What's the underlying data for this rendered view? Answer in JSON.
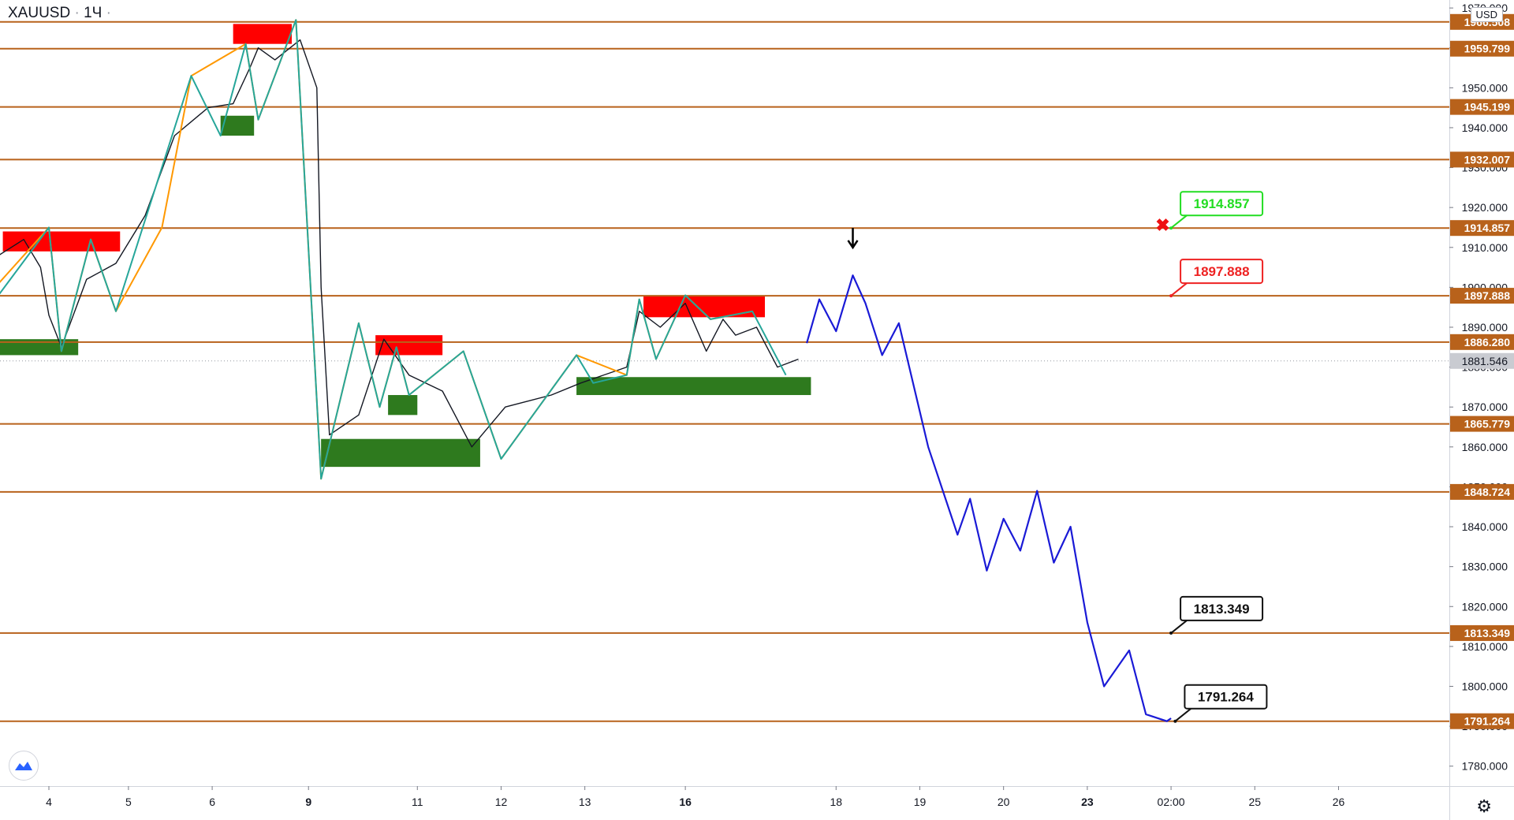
{
  "header": {
    "symbol": "XAUUSD",
    "separator": "·",
    "interval": "1Ч",
    "dot": "·"
  },
  "currency": "USD",
  "chart_data": {
    "type": "line",
    "title": "XAUUSD · 1Ч",
    "ylim": [
      1775,
      1972
    ],
    "x_ticks": [
      {
        "label": "4",
        "bold": false
      },
      {
        "label": "5",
        "bold": false
      },
      {
        "label": "6",
        "bold": false
      },
      {
        "label": "9",
        "bold": true
      },
      {
        "label": "11",
        "bold": false
      },
      {
        "label": "12",
        "bold": false
      },
      {
        "label": "13",
        "bold": false
      },
      {
        "label": "16",
        "bold": true
      },
      {
        "label": "18",
        "bold": false
      },
      {
        "label": "19",
        "bold": false
      },
      {
        "label": "20",
        "bold": false
      },
      {
        "label": "23",
        "bold": true
      },
      {
        "label": "02:00",
        "bold": false
      },
      {
        "label": "25",
        "bold": false
      },
      {
        "label": "26",
        "bold": false
      }
    ],
    "x_tick_index": [
      0.55,
      1.5,
      2.5,
      3.65,
      4.95,
      5.95,
      6.95,
      8.15,
      9.95,
      10.95,
      11.95,
      12.95,
      13.95,
      14.95,
      15.95
    ],
    "y_ticks": [
      1780,
      1790,
      1800,
      1810,
      1820,
      1830,
      1840,
      1850,
      1860,
      1870,
      1880,
      1890,
      1900,
      1910,
      1920,
      1930,
      1940,
      1950,
      1960,
      1970
    ],
    "levels": [
      {
        "value": 1966.508,
        "label": "1966.508"
      },
      {
        "value": 1959.799,
        "label": "1959.799"
      },
      {
        "value": 1945.199,
        "label": "1945.199"
      },
      {
        "value": 1932.007,
        "label": "1932.007"
      },
      {
        "value": 1914.857,
        "label": "1914.857"
      },
      {
        "value": 1897.888,
        "label": "1897.888"
      },
      {
        "value": 1886.28,
        "label": "1886.280"
      },
      {
        "value": 1865.779,
        "label": "1865.779"
      },
      {
        "value": 1848.724,
        "label": "1848.724"
      },
      {
        "value": 1813.349,
        "label": "1813.349"
      },
      {
        "value": 1791.264,
        "label": "1791.264"
      }
    ],
    "last_price": {
      "value": 1881.546,
      "label": "1881.546"
    },
    "supply_zones": [
      {
        "x1": 0.0,
        "x2": 1.4,
        "y1": 1909,
        "y2": 1914
      },
      {
        "x1": 2.75,
        "x2": 3.45,
        "y1": 1961,
        "y2": 1966
      },
      {
        "x1": 4.45,
        "x2": 5.25,
        "y1": 1883,
        "y2": 1888
      },
      {
        "x1": 7.65,
        "x2": 9.1,
        "y1": 1892.5,
        "y2": 1898
      }
    ],
    "demand_zones": [
      {
        "x1": -0.65,
        "x2": 0.9,
        "y1": 1883,
        "y2": 1887
      },
      {
        "x1": 2.6,
        "x2": 3.0,
        "y1": 1938,
        "y2": 1943
      },
      {
        "x1": 4.6,
        "x2": 4.95,
        "y1": 1868,
        "y2": 1873
      },
      {
        "x1": 3.8,
        "x2": 5.7,
        "y1": 1855,
        "y2": 1862
      },
      {
        "x1": 6.85,
        "x2": 9.65,
        "y1": 1873,
        "y2": 1877.5
      }
    ],
    "series": [
      {
        "role": "price",
        "x": [
          -0.65,
          -0.35,
          -0.05,
          0.25,
          0.45,
          0.55,
          0.7,
          1.0,
          1.35,
          1.7,
          2.05,
          2.45,
          2.75,
          2.95,
          3.05,
          3.25,
          3.55,
          3.75,
          3.8,
          3.9,
          4.25,
          4.55,
          4.85,
          5.25,
          5.6,
          6.0,
          6.55,
          6.9,
          7.45,
          7.6,
          7.85,
          8.15,
          8.4,
          8.6,
          8.75,
          9.0,
          9.25,
          9.5
        ],
        "y": [
          1886,
          1898,
          1908,
          1912,
          1905,
          1893,
          1885,
          1902,
          1906,
          1918,
          1938,
          1945,
          1946,
          1955,
          1960,
          1957,
          1962,
          1950,
          1900,
          1863,
          1868,
          1887,
          1878,
          1874,
          1860,
          1870,
          1873,
          1876,
          1880,
          1894,
          1890,
          1896,
          1884,
          1892,
          1888,
          1890,
          1880,
          1882
        ]
      },
      {
        "role": "zigzag-up",
        "x": [
          -0.65,
          0.55,
          0.7,
          1.05,
          1.35,
          1.9,
          2.25,
          2.9,
          3.05,
          3.5,
          3.8,
          4.25,
          4.5,
          4.7,
          4.85,
          5.5,
          5.95,
          6.85,
          7.45,
          7.6,
          7.8,
          8.15,
          8.45,
          8.95
        ],
        "y": [
          1887,
          1915,
          1884,
          1912,
          1894,
          1915,
          1953,
          1961,
          1942,
          1967,
          1852,
          1891,
          1870,
          1885,
          1873,
          1884,
          1857,
          1883,
          1878,
          1897,
          1882,
          1898,
          1892,
          1894
        ]
      },
      {
        "role": "zigzag-down",
        "x": [
          -0.65,
          -0.55,
          0.55,
          0.7,
          1.05,
          1.35,
          2.25,
          2.6,
          2.9,
          3.05,
          3.5,
          3.8,
          4.25,
          4.5,
          4.7,
          4.85,
          5.5,
          5.95,
          6.85,
          7.05,
          7.45,
          7.6,
          7.8,
          8.15,
          8.45,
          8.95,
          9.35
        ],
        "y": [
          1888,
          1884,
          1915,
          1884,
          1912,
          1894,
          1953,
          1938,
          1961,
          1942,
          1967,
          1852,
          1891,
          1870,
          1885,
          1873,
          1884,
          1857,
          1883,
          1876,
          1878,
          1897,
          1882,
          1898,
          1892,
          1894,
          1878
        ]
      },
      {
        "role": "forecast",
        "x": [
          9.6,
          9.75,
          9.95,
          10.15,
          10.3,
          10.5,
          10.7,
          11.05,
          11.4,
          11.55,
          11.75,
          11.95,
          12.15,
          12.35,
          12.55,
          12.75,
          12.95,
          13.15,
          13.45,
          13.65,
          13.9,
          13.95
        ],
        "y": [
          1886,
          1897,
          1889,
          1903,
          1896,
          1883,
          1891,
          1860,
          1838,
          1847,
          1829,
          1842,
          1834,
          1849,
          1831,
          1840,
          1816,
          1800,
          1809,
          1793,
          1791.264,
          1792
        ]
      }
    ],
    "annotations": [
      {
        "text": "1914.857",
        "x": 13.95,
        "y": 1914.857,
        "color": "#22dd22"
      },
      {
        "text": "1897.888",
        "x": 13.95,
        "y": 1897.888,
        "color": "#ee2222"
      },
      {
        "text": "1813.349",
        "x": 13.95,
        "y": 1813.349,
        "color": "#111111"
      },
      {
        "text": "1791.264",
        "x": 14.0,
        "y": 1791.264,
        "color": "#111111"
      }
    ],
    "markers": [
      {
        "symbol": "✖",
        "x": 13.85,
        "y": 1915.5,
        "color": "#ee1111"
      },
      {
        "symbol": "arrow-down",
        "x": 10.15,
        "y": 1907,
        "color": "#000000"
      }
    ],
    "colors": {
      "level_line": "#b8621b",
      "level_label_bg": "#b8621b",
      "supply": "#ff0000",
      "demand": "#2e7a1e",
      "zigzag_up": "#ff9800",
      "zigzag_down": "#26a69a",
      "price": "#131722",
      "forecast": "#1a1ad6",
      "last_price_bg": "#c9cbd1"
    }
  }
}
